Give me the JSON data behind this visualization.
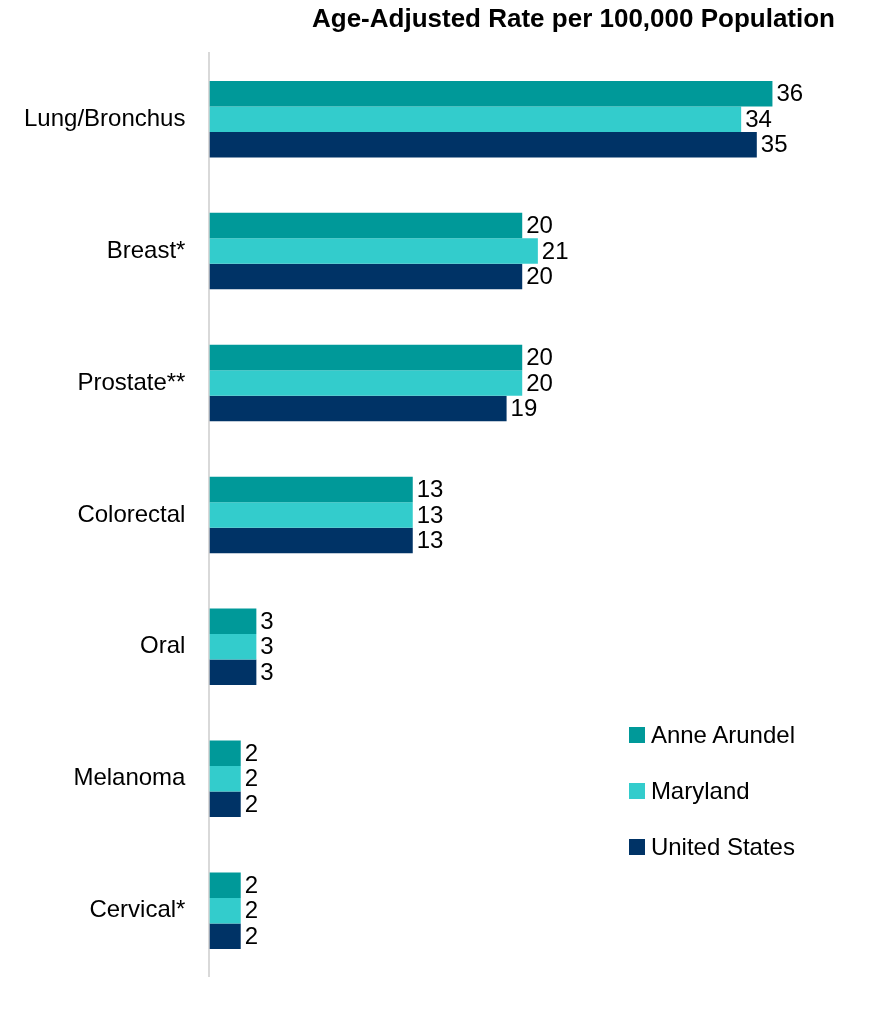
{
  "chart_data": {
    "type": "bar",
    "orientation": "horizontal",
    "title": "Age-Adjusted Rate per 100,000 Population",
    "categories": [
      "Lung/Bronchus",
      "Breast*",
      "Prostate**",
      "Colorectal",
      "Oral",
      "Melanoma",
      "Cervical*"
    ],
    "series": [
      {
        "name": "Anne Arundel",
        "color": "#009999",
        "values": [
          36,
          20,
          20,
          13,
          3,
          2,
          2
        ]
      },
      {
        "name": "Maryland",
        "color": "#33cccc",
        "values": [
          34,
          21,
          20,
          13,
          3,
          2,
          2
        ]
      },
      {
        "name": "United States",
        "color": "#003366",
        "values": [
          35,
          20,
          19,
          13,
          3,
          2,
          2
        ]
      }
    ],
    "data_labels": true,
    "legend": "bottom right"
  }
}
